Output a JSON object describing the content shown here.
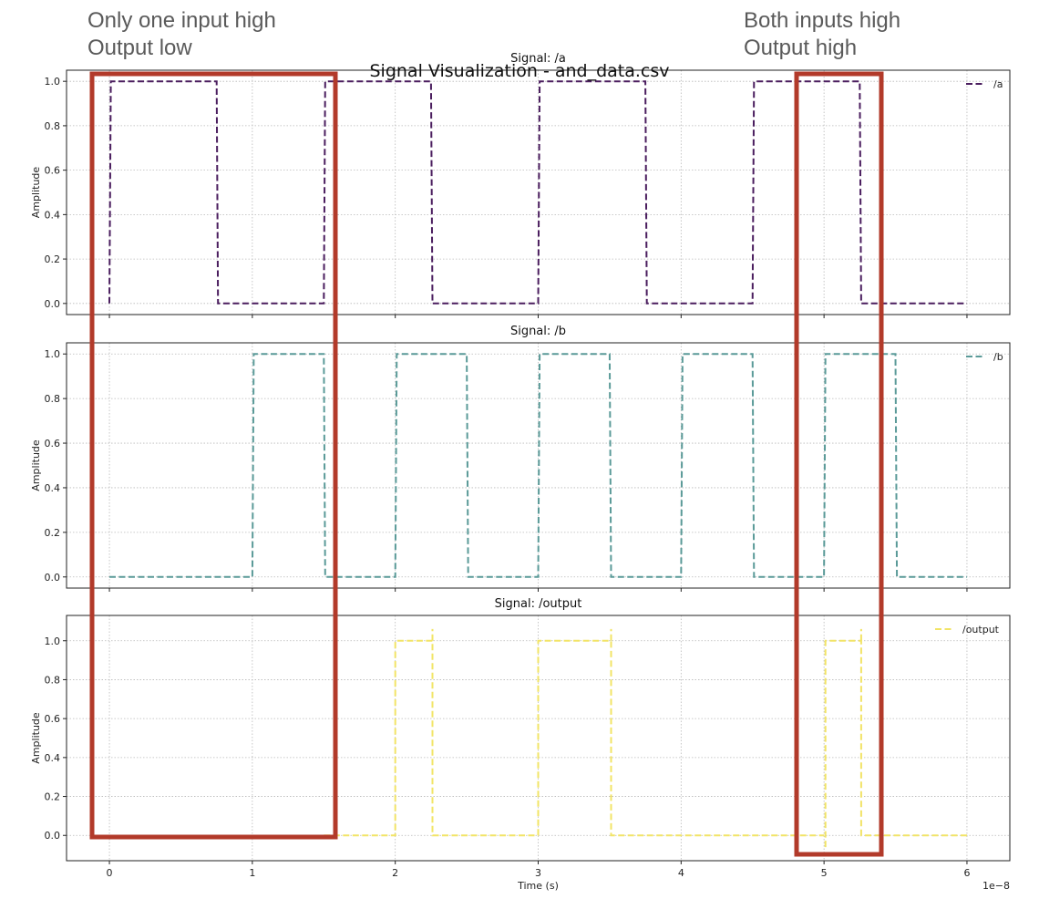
{
  "annotations": {
    "left": {
      "line1": "Only one input high",
      "line2": "Output low"
    },
    "right": {
      "line1": "Both inputs high",
      "line2": "Output high"
    },
    "highlight_color": "#b23a2a"
  },
  "figure_title": "Signal Visualization - and_data.csv",
  "chart_data": [
    {
      "type": "line",
      "title": "Signal: /a",
      "xlabel": "",
      "ylabel": "Amplitude",
      "xlim": [
        -0.3,
        6.3
      ],
      "ylim": [
        -0.05,
        1.05
      ],
      "xticks": [
        "0",
        "1",
        "2",
        "3",
        "4",
        "5",
        "6"
      ],
      "yticks": [
        "0.0",
        "0.2",
        "0.4",
        "0.6",
        "0.8",
        "1.0"
      ],
      "grid": true,
      "legend": "top-right",
      "series": [
        {
          "name": "/a",
          "color": "#4a1d5e",
          "style": "dashed",
          "x": [
            0,
            0.01,
            0.75,
            0.76,
            1.5,
            1.51,
            2.25,
            2.26,
            3.0,
            3.01,
            3.75,
            3.76,
            4.5,
            4.51,
            5.25,
            5.26,
            6.0
          ],
          "y": [
            0,
            1,
            1,
            0,
            0,
            1,
            1,
            0,
            0,
            1,
            1,
            0,
            0,
            1,
            1,
            0,
            0
          ]
        }
      ]
    },
    {
      "type": "line",
      "title": "Signal: /b",
      "xlabel": "",
      "ylabel": "Amplitude",
      "xlim": [
        -0.3,
        6.3
      ],
      "ylim": [
        -0.05,
        1.05
      ],
      "xticks": [
        "0",
        "1",
        "2",
        "3",
        "4",
        "5",
        "6"
      ],
      "yticks": [
        "0.0",
        "0.2",
        "0.4",
        "0.6",
        "0.8",
        "1.0"
      ],
      "grid": true,
      "legend": "top-right",
      "series": [
        {
          "name": "/b",
          "color": "#5a9a98",
          "style": "dashed",
          "x": [
            0,
            1.0,
            1.01,
            1.5,
            1.51,
            2.0,
            2.01,
            2.5,
            2.51,
            3.0,
            3.01,
            3.5,
            3.51,
            4.0,
            4.01,
            4.5,
            4.51,
            5.0,
            5.01,
            5.5,
            5.51,
            6.0
          ],
          "y": [
            0,
            0,
            1,
            1,
            0,
            0,
            1,
            1,
            0,
            0,
            1,
            1,
            0,
            0,
            1,
            1,
            0,
            0,
            1,
            1,
            0,
            0
          ]
        }
      ]
    },
    {
      "type": "line",
      "title": "Signal: /output",
      "xlabel": "Time (s)",
      "ylabel": "Amplitude",
      "x_multiplier": "1e−8",
      "xlim": [
        -0.3,
        6.3
      ],
      "ylim": [
        -0.13,
        1.13
      ],
      "xticks": [
        "0",
        "1",
        "2",
        "3",
        "4",
        "5",
        "6"
      ],
      "yticks": [
        "0.0",
        "0.2",
        "0.4",
        "0.6",
        "0.8",
        "1.0"
      ],
      "grid": true,
      "legend": "top-right",
      "series": [
        {
          "name": "/output",
          "color": "#f2e466",
          "style": "dashed",
          "segments": [
            {
              "x": [
                1.5,
                2.0,
                2.0,
                2.26,
                2.26,
                3.0
              ],
              "y": [
                0,
                0,
                1,
                1,
                0,
                0
              ]
            },
            {
              "x": [
                2.26,
                2.26
              ],
              "y": [
                1,
                1.06
              ]
            },
            {
              "x": [
                3.0,
                3.0,
                3.51,
                3.51,
                5.0
              ],
              "y": [
                0,
                1,
                1,
                0,
                0
              ]
            },
            {
              "x": [
                3.51,
                3.51
              ],
              "y": [
                1,
                1.06
              ]
            },
            {
              "x": [
                5.01,
                5.01,
                5.26,
                5.26,
                6.0
              ],
              "y": [
                -0.06,
                1,
                1,
                0,
                0
              ]
            },
            {
              "x": [
                5.26,
                5.26
              ],
              "y": [
                1,
                1.06
              ]
            }
          ]
        }
      ]
    }
  ]
}
